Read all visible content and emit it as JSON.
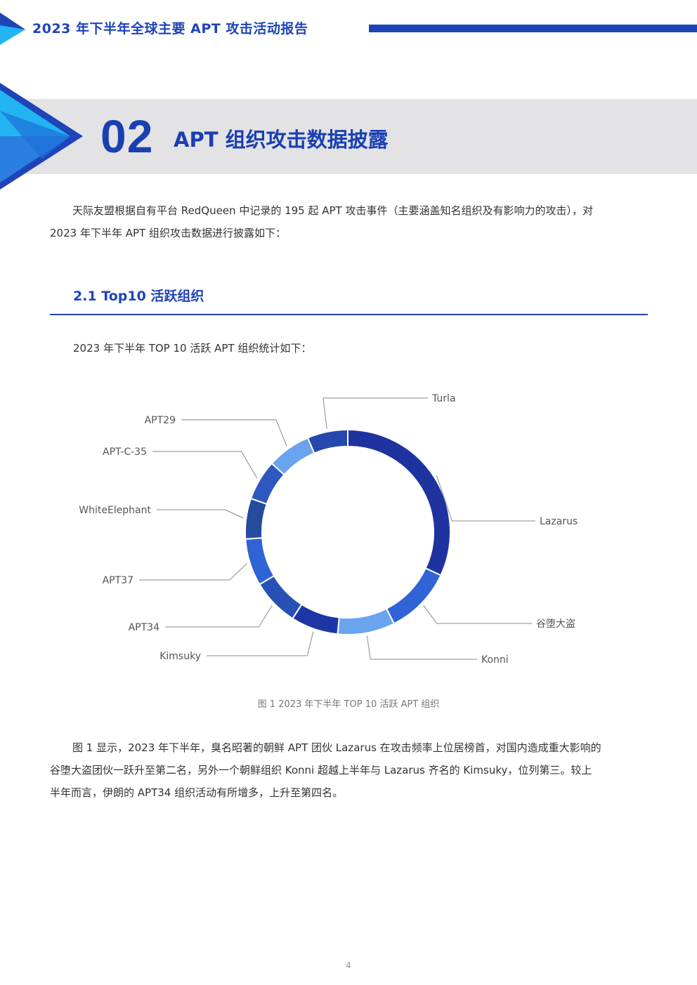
{
  "header": {
    "title": "2023 年下半年全球主要 APT 攻击活动报告",
    "accent": "#1f44b8"
  },
  "section": {
    "number": "02",
    "title": "APT 组织攻击数据披露"
  },
  "intro": {
    "line1": "天际友盟根据自有平台 RedQueen 中记录的 195 起 APT 攻击事件（主要涵盖知名组织及有影响力的攻击），对",
    "line2": "2023 年下半年 APT 组织攻击数据进行披露如下："
  },
  "subsection": {
    "title": "2.1 Top10 活跃组织",
    "lead": "2023 年下半年 TOP 10 活跃 APT 组织统计如下："
  },
  "chart_data": {
    "type": "pie",
    "donut": true,
    "title": "",
    "categories": [
      "Lazarus",
      "谷堕大盗",
      "Konni",
      "Kimsuky",
      "APT34",
      "APT37",
      "WhiteElephant",
      "APT-C-35",
      "APT29",
      "Turla"
    ],
    "values": [
      30,
      10,
      8.5,
      7,
      7,
      7,
      6,
      6,
      6.5,
      6
    ],
    "colors": [
      "#1e33a0",
      "#2f63d6",
      "#6aa4ee",
      "#1e35a6",
      "#2851b5",
      "#2f63d6",
      "#254a9e",
      "#2e58c0",
      "#6aa4ee",
      "#2647ad"
    ]
  },
  "figure": {
    "caption": "图 1 2023 年下半年 TOP 10 活跃 APT 组织"
  },
  "analysis": {
    "line1": "图 1 显示，2023 年下半年，臭名昭著的朝鲜 APT 团伙 Lazarus 在攻击频率上位居榜首，对国内造成重大影响的",
    "line2": "谷堕大盗团伙一跃升至第二名，另外一个朝鲜组织 Konni 超越上半年与 Lazarus 齐名的 Kimsuky，位列第三。较上",
    "line3": "半年而言，伊朗的 APT34 组织活动有所增多，上升至第四名。"
  },
  "footer": {
    "page_number": "4"
  }
}
